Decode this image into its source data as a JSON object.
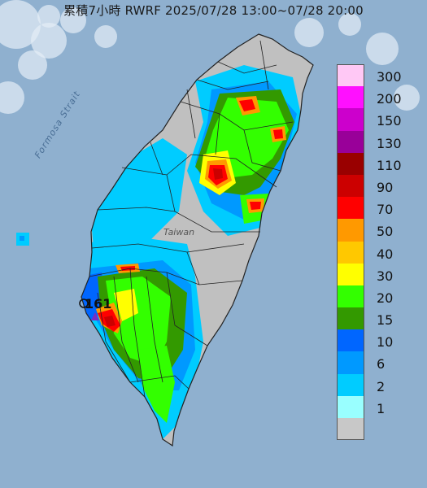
{
  "title": "累積7小時 RWRF 2025/07/28 13:00~07/28 20:00",
  "labels": {
    "strait": "Formosa Strait",
    "island": "Taiwan",
    "station": "161"
  },
  "legend": [
    {
      "label": "300",
      "color": "#ffc8f5"
    },
    {
      "label": "200",
      "color": "#ff10ff"
    },
    {
      "label": "150",
      "color": "#cc00cc"
    },
    {
      "label": "130",
      "color": "#990099"
    },
    {
      "label": "110",
      "color": "#990000"
    },
    {
      "label": "90",
      "color": "#cc0000"
    },
    {
      "label": "70",
      "color": "#ff0000"
    },
    {
      "label": "50",
      "color": "#ff9900"
    },
    {
      "label": "40",
      "color": "#ffc800"
    },
    {
      "label": "30",
      "color": "#ffff00"
    },
    {
      "label": "20",
      "color": "#33ff00"
    },
    {
      "label": "15",
      "color": "#339900"
    },
    {
      "label": "10",
      "color": "#0066ff"
    },
    {
      "label": "6",
      "color": "#0099ff"
    },
    {
      "label": "2",
      "color": "#00ccff"
    },
    {
      "label": "1",
      "color": "#99ffff"
    },
    {
      "label": "",
      "color": "#c8c8c8"
    }
  ],
  "colors": {
    "sea": "#8fb0cf",
    "land": "#c0c0c0",
    "border": "#222222",
    "marker": "#7a2cc2"
  }
}
